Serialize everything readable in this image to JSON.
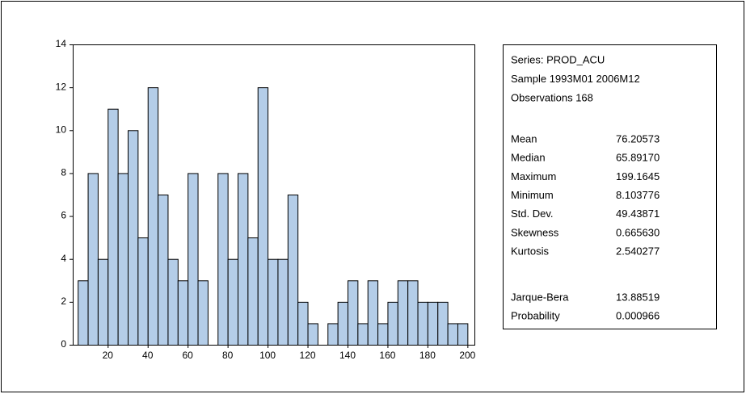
{
  "chart_data": {
    "type": "histogram",
    "bins": [
      5,
      10,
      15,
      20,
      25,
      30,
      35,
      40,
      45,
      50,
      55,
      60,
      65,
      70,
      75,
      80,
      85,
      90,
      95,
      100,
      105,
      110,
      115,
      120,
      125,
      130,
      135,
      140,
      145,
      150,
      155,
      160,
      165,
      170,
      175,
      180,
      185,
      190,
      195,
      200
    ],
    "values": [
      3,
      8,
      4,
      11,
      8,
      10,
      5,
      12,
      7,
      4,
      3,
      8,
      3,
      0,
      8,
      4,
      8,
      5,
      12,
      4,
      4,
      7,
      2,
      1,
      0,
      1,
      2,
      3,
      1,
      3,
      1,
      2,
      3,
      3,
      2,
      2,
      2,
      1,
      1
    ],
    "color": "#b4cde8",
    "xlim": [
      2.5,
      203.5
    ],
    "xticks": [
      20,
      40,
      60,
      80,
      100,
      120,
      140,
      160,
      180,
      200
    ],
    "ylim": [
      0,
      14
    ],
    "yticks": [
      0,
      2,
      4,
      6,
      8,
      10,
      12,
      14
    ],
    "stats_header": [
      "Series: PROD_ACU",
      "Sample 1993M01 2006M12",
      "Observations 168"
    ],
    "stats": [
      {
        "label": "Mean",
        "value": "76.20573"
      },
      {
        "label": "Median",
        "value": "65.89170"
      },
      {
        "label": "Maximum",
        "value": "199.1645"
      },
      {
        "label": "Minimum",
        "value": "8.103776"
      },
      {
        "label": "Std. Dev.",
        "value": "49.43871"
      },
      {
        "label": "Skewness",
        "value": "0.665630"
      },
      {
        "label": "Kurtosis",
        "value": "2.540277"
      }
    ],
    "tests": [
      {
        "label": "Jarque-Bera",
        "value": "13.88519"
      },
      {
        "label": "Probability",
        "value": "0.000966"
      }
    ]
  }
}
